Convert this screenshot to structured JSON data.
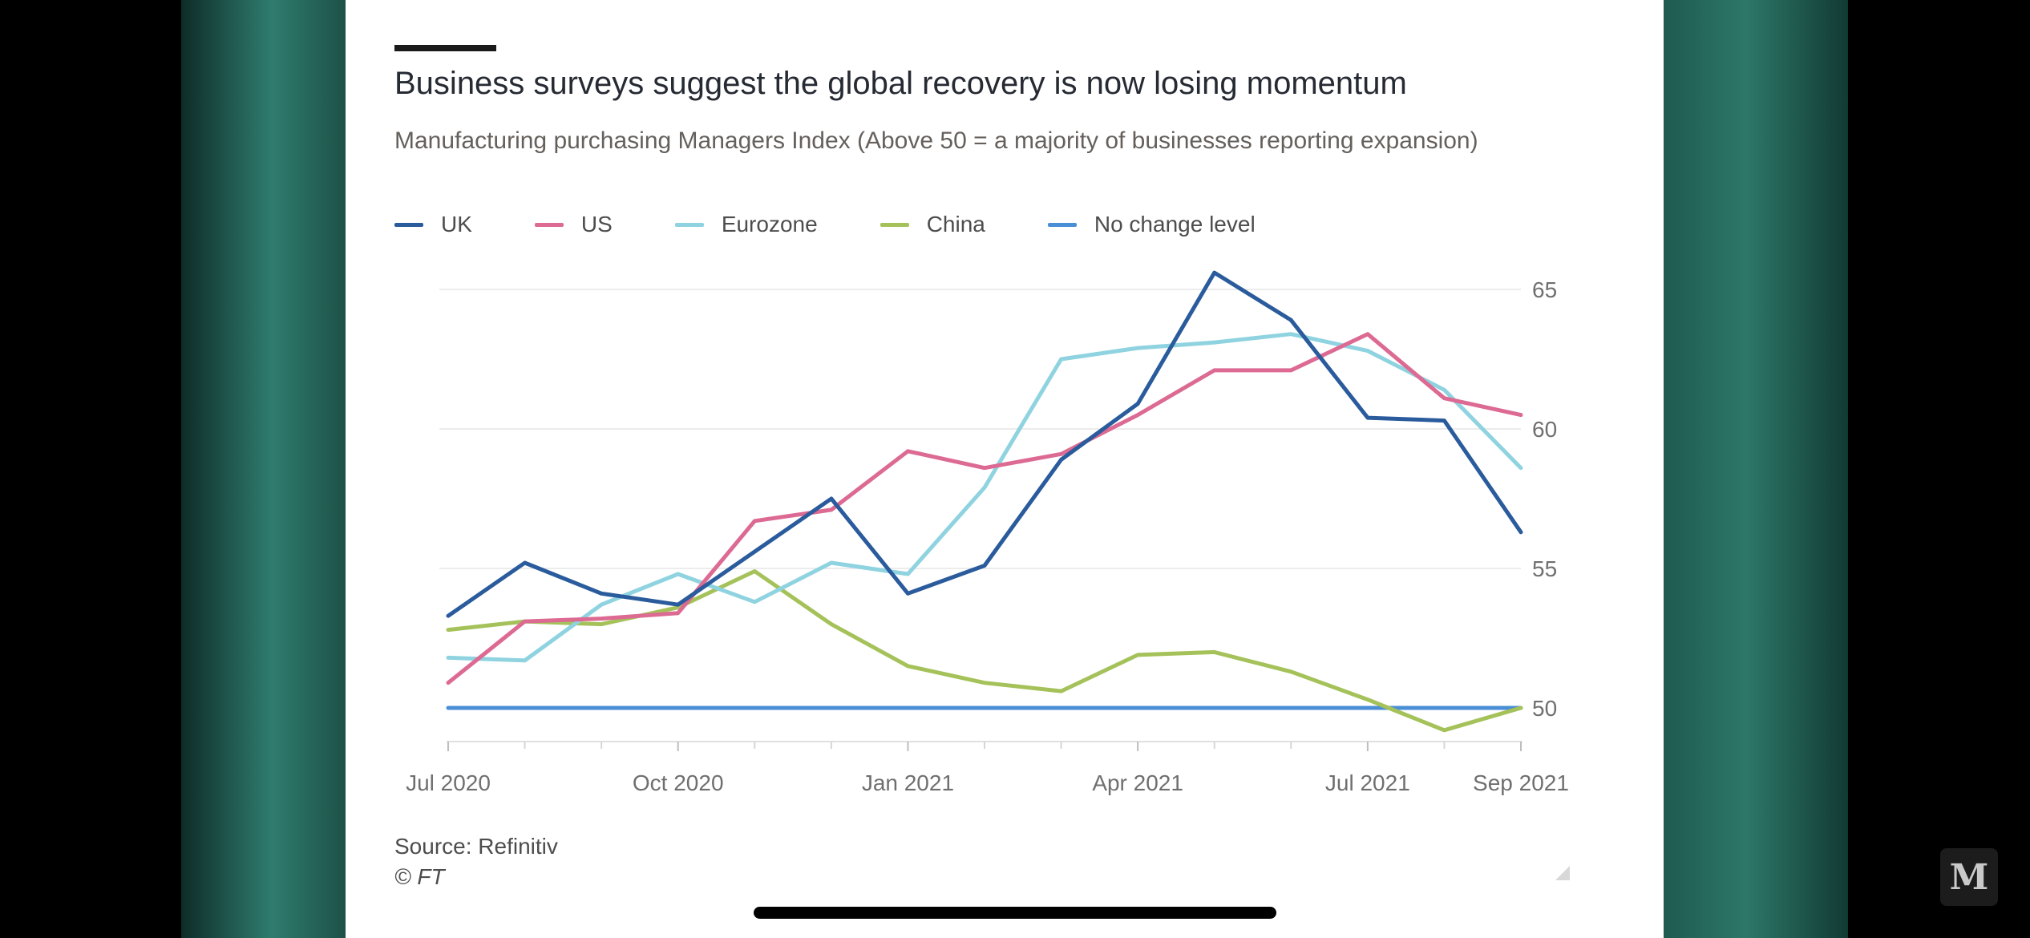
{
  "chart_data": {
    "type": "line",
    "title": "Business surveys suggest the global recovery is now losing momentum",
    "subtitle": "Manufacturing purchasing Managers Index (Above 50 = a majority of businesses reporting expansion)",
    "x": [
      "Jul 2020",
      "Aug 2020",
      "Sep 2020",
      "Oct 2020",
      "Nov 2020",
      "Dec 2020",
      "Jan 2021",
      "Feb 2021",
      "Mar 2021",
      "Apr 2021",
      "May 2021",
      "Jun 2021",
      "Jul 2021",
      "Aug 2021",
      "Sep 2021"
    ],
    "x_tick_labels": [
      "Jul 2020",
      "Oct 2020",
      "Jan 2021",
      "Apr 2021",
      "Jul 2021",
      "Sep 2021"
    ],
    "y_ticks": [
      50,
      55,
      60,
      65
    ],
    "ylim": [
      48,
      66
    ],
    "series": [
      {
        "name": "UK",
        "color": "#2a5b9c",
        "values": [
          53.3,
          55.2,
          54.1,
          53.7,
          55.6,
          57.5,
          54.1,
          55.1,
          58.9,
          60.9,
          65.6,
          63.9,
          60.4,
          60.3,
          56.3
        ]
      },
      {
        "name": "US",
        "color": "#dc6a93",
        "values": [
          50.9,
          53.1,
          53.2,
          53.4,
          56.7,
          57.1,
          59.2,
          58.6,
          59.1,
          60.5,
          62.1,
          62.1,
          63.4,
          61.1,
          60.5
        ]
      },
      {
        "name": "Eurozone",
        "color": "#8fd3e0",
        "values": [
          51.8,
          51.7,
          53.7,
          54.8,
          53.8,
          55.2,
          54.8,
          57.9,
          62.5,
          62.9,
          63.1,
          63.4,
          62.8,
          61.4,
          58.6
        ]
      },
      {
        "name": "China",
        "color": "#a5c25a",
        "values": [
          52.8,
          53.1,
          53.0,
          53.6,
          54.9,
          53.0,
          51.5,
          50.9,
          50.6,
          51.9,
          52.0,
          51.3,
          50.3,
          49.2,
          50.0
        ]
      },
      {
        "name": "No change level",
        "color": "#4a8fd6",
        "values": [
          50,
          50,
          50,
          50,
          50,
          50,
          50,
          50,
          50,
          50,
          50,
          50,
          50,
          50,
          50
        ]
      }
    ],
    "legend": "top-left",
    "y_axis_side": "right",
    "grid": true,
    "source": "Source: Refinitiv",
    "copyright": "© FT"
  },
  "watermark": "M"
}
